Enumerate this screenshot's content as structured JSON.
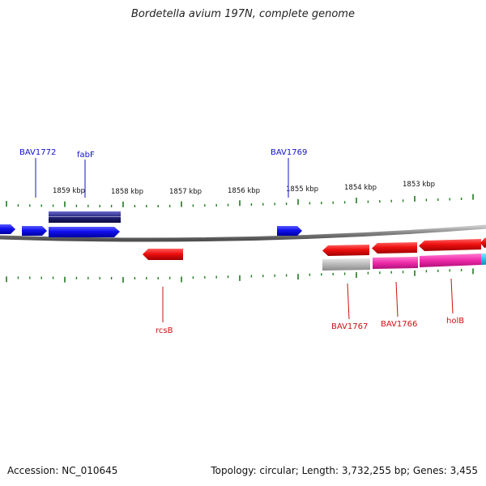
{
  "title": "Bordetella avium 197N, complete genome",
  "footer": {
    "accession": "Accession: NC_010645",
    "summary": "Topology: circular; Length: 3,732,255 bp; Genes: 3,455"
  },
  "ruler": {
    "labels": [
      "1859 kbp",
      "1858 kbp",
      "1857 kbp",
      "1856 kbp",
      "1855 kbp",
      "1854 kbp",
      "1853 kbp"
    ]
  },
  "colors": {
    "forward_gene": "#1010ee",
    "reverse_gene": "#ee1010",
    "cds_forward": "#22227a",
    "cds_reverse": "#ee2aa8",
    "neutral": "#b8b8b8",
    "cyan": "#20c8ee",
    "tick": "#1f7a1f",
    "backbone": "#808080",
    "label_forward": "#1010cc",
    "label_reverse": "#cc1010"
  },
  "labels": {
    "forward": [
      "BAV1772",
      "fabF",
      "BAV1769"
    ],
    "reverse": [
      "rcsB",
      "BAV1767",
      "BAV1766",
      "holB"
    ]
  }
}
